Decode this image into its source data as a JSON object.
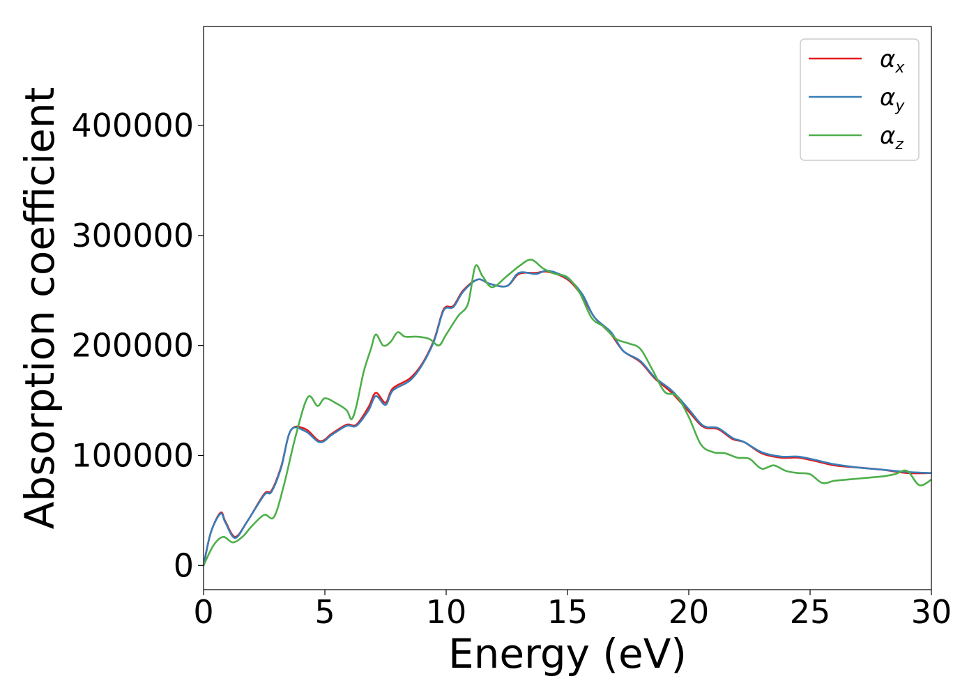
{
  "chart_data": {
    "type": "line",
    "title": "",
    "xlabel": "Energy (eV)",
    "ylabel": "Absorption coefficient",
    "xlim": [
      0,
      30
    ],
    "ylim": [
      -22000,
      490000
    ],
    "xticks": [
      "0",
      "5",
      "10",
      "15",
      "20",
      "25",
      "30"
    ],
    "yticks": [
      "0",
      "100000",
      "200000",
      "300000",
      "400000"
    ],
    "grid": false,
    "legend_placement": "top-right",
    "series": [
      {
        "name": "α_x",
        "base": "α",
        "sub": "x",
        "color": "#e41a1c",
        "x": [
          0,
          0.3,
          0.7,
          0.9,
          1.3,
          1.8,
          2.5,
          2.8,
          3.2,
          3.6,
          4.2,
          4.8,
          5.3,
          5.9,
          6.3,
          6.8,
          7.1,
          7.5,
          7.8,
          8.5,
          9.0,
          9.5,
          9.9,
          10.3,
          10.7,
          11.3,
          11.8,
          12.5,
          13.0,
          13.7,
          14.2,
          15.0,
          15.6,
          16.1,
          16.8,
          17.3,
          18.0,
          18.6,
          19.3,
          20.0,
          20.6,
          21.2,
          21.8,
          22.3,
          23.0,
          23.8,
          24.5,
          25.2,
          26.0,
          27.0,
          28.0,
          29.0,
          30.0
        ],
        "values": [
          0,
          30000,
          48000,
          40000,
          26000,
          40000,
          65000,
          68000,
          90000,
          123000,
          124000,
          113000,
          120000,
          128000,
          128000,
          144000,
          157000,
          148000,
          161000,
          170000,
          183000,
          205000,
          233000,
          236000,
          250000,
          260000,
          256000,
          254000,
          265000,
          266000,
          267000,
          260000,
          245000,
          226000,
          210000,
          195000,
          185000,
          170000,
          157000,
          140000,
          126000,
          124000,
          115000,
          112000,
          102000,
          98000,
          98000,
          95000,
          91000,
          89000,
          87000,
          84000,
          84000
        ]
      },
      {
        "name": "α_y",
        "base": "α",
        "sub": "y",
        "color": "#377eb8",
        "x": [
          0,
          0.3,
          0.7,
          0.9,
          1.3,
          1.8,
          2.5,
          2.8,
          3.2,
          3.6,
          4.2,
          4.8,
          5.3,
          5.9,
          6.3,
          6.8,
          7.1,
          7.5,
          7.8,
          8.5,
          9.0,
          9.5,
          9.9,
          10.3,
          10.7,
          11.3,
          11.8,
          12.5,
          13.0,
          13.7,
          14.2,
          15.0,
          15.6,
          16.1,
          16.8,
          17.3,
          18.0,
          18.6,
          19.3,
          20.0,
          20.6,
          21.2,
          21.8,
          22.3,
          23.0,
          23.8,
          24.5,
          25.2,
          26.0,
          27.0,
          28.0,
          29.0,
          30.0
        ],
        "values": [
          0,
          30000,
          47000,
          39000,
          25000,
          40000,
          64000,
          67000,
          89000,
          123000,
          122000,
          112000,
          119000,
          127000,
          127000,
          141000,
          154000,
          146000,
          159000,
          168000,
          182000,
          204000,
          232000,
          235000,
          249000,
          260000,
          256000,
          254000,
          266000,
          265000,
          268000,
          261000,
          247000,
          226000,
          212000,
          195000,
          186000,
          171000,
          159000,
          142000,
          127000,
          125000,
          116000,
          112000,
          103000,
          99000,
          99000,
          96000,
          92000,
          89000,
          87000,
          85000,
          84000
        ]
      },
      {
        "name": "α_z",
        "base": "α",
        "sub": "z",
        "color": "#4daf4a",
        "x": [
          0,
          0.4,
          0.8,
          1.2,
          1.6,
          2.0,
          2.5,
          2.9,
          3.3,
          3.8,
          4.3,
          4.7,
          5.0,
          5.5,
          5.9,
          6.1,
          6.3,
          6.6,
          6.9,
          7.1,
          7.4,
          7.7,
          8.0,
          8.3,
          8.8,
          9.3,
          9.7,
          10.0,
          10.5,
          10.9,
          11.2,
          11.5,
          11.9,
          12.5,
          13.0,
          13.5,
          14.0,
          14.5,
          15.0,
          15.5,
          16.0,
          16.5,
          17.0,
          17.5,
          18.0,
          18.5,
          19.0,
          19.5,
          20.0,
          20.5,
          21.0,
          21.5,
          22.0,
          22.5,
          23.0,
          23.5,
          24.0,
          24.5,
          25.0,
          25.5,
          26.0,
          26.5,
          27.0,
          27.5,
          28.0,
          28.5,
          29.0,
          29.5,
          30.0
        ],
        "values": [
          0,
          18000,
          26000,
          21000,
          26000,
          36000,
          46000,
          44000,
          72000,
          118000,
          153000,
          145000,
          152000,
          147000,
          141000,
          133000,
          145000,
          176000,
          197000,
          210000,
          200000,
          203000,
          212000,
          208000,
          208000,
          206000,
          200000,
          210000,
          227000,
          238000,
          272000,
          263000,
          253000,
          263000,
          272000,
          278000,
          270000,
          265000,
          262000,
          248000,
          225000,
          217000,
          206000,
          202000,
          197000,
          178000,
          158000,
          154000,
          135000,
          110000,
          103000,
          102000,
          98000,
          97000,
          88000,
          91000,
          86000,
          84000,
          83000,
          75000,
          77000,
          78000,
          79000,
          80000,
          81000,
          83000,
          86000,
          73000,
          78000
        ]
      }
    ]
  }
}
